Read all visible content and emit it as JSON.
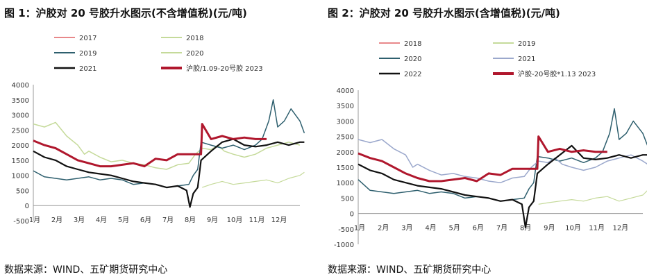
{
  "chart_data": [
    {
      "type": "line",
      "title": "图 1：沪胶对 20 号胶升水图示(不含增值税)(元/吨)",
      "source": "数据来源：WIND、五矿期货研究中心",
      "x_ticks": [
        "1月",
        "2月",
        "3月",
        "4月",
        "5月",
        "6月",
        "7月",
        "8月",
        "9月",
        "10月",
        "11月",
        "12月"
      ],
      "x_range": [
        0,
        12
      ],
      "ylim": [
        -500,
        4000
      ],
      "y_ticks": [
        -500,
        0,
        500,
        1000,
        1500,
        2000,
        2500,
        3000,
        3500,
        4000
      ],
      "legend_position": "top",
      "series": [
        {
          "name": "2017",
          "color": "#e8888a",
          "width": 1.2,
          "points": []
        },
        {
          "name": "2018",
          "color": "#c5da9a",
          "width": 1.5,
          "points": [
            [
              0,
              2700
            ],
            [
              0.5,
              2600
            ],
            [
              1,
              2750
            ],
            [
              1.5,
              2300
            ],
            [
              2,
              2000
            ],
            [
              2.3,
              1700
            ],
            [
              2.5,
              1800
            ],
            [
              3,
              1600
            ],
            [
              3.5,
              1450
            ],
            [
              4,
              1500
            ],
            [
              4.5,
              1400
            ],
            [
              5,
              1350
            ],
            [
              5.5,
              1250
            ],
            [
              6,
              1200
            ],
            [
              6.5,
              1350
            ],
            [
              7,
              1400
            ],
            [
              7.3,
              1700
            ],
            [
              7.6,
              1900
            ],
            [
              8,
              1850
            ],
            [
              8.3,
              2000
            ],
            [
              8.6,
              1800
            ],
            [
              9,
              1700
            ],
            [
              9.5,
              1600
            ],
            [
              10,
              1700
            ],
            [
              10.5,
              1900
            ],
            [
              11,
              2000
            ],
            [
              11.5,
              2100
            ],
            [
              12,
              2000
            ]
          ]
        },
        {
          "name": "2019",
          "color": "#2e5f6e",
          "width": 1.5,
          "points": [
            [
              0,
              1150
            ],
            [
              0.5,
              950
            ],
            [
              1,
              900
            ],
            [
              1.5,
              850
            ],
            [
              2,
              900
            ],
            [
              2.5,
              950
            ],
            [
              3,
              850
            ],
            [
              3.5,
              900
            ],
            [
              4,
              850
            ],
            [
              4.5,
              700
            ],
            [
              5,
              750
            ],
            [
              5.5,
              700
            ],
            [
              6,
              600
            ],
            [
              6.5,
              650
            ],
            [
              7,
              700
            ],
            [
              7.2,
              1000
            ],
            [
              7.4,
              1200
            ],
            [
              7.55,
              2100
            ],
            [
              8,
              2000
            ],
            [
              8.5,
              1900
            ],
            [
              9,
              2000
            ],
            [
              9.5,
              1850
            ],
            [
              10,
              2000
            ],
            [
              10.3,
              2200
            ],
            [
              10.6,
              2800
            ],
            [
              10.8,
              3500
            ],
            [
              11,
              2600
            ],
            [
              11.3,
              2800
            ],
            [
              11.6,
              3200
            ],
            [
              12,
              2800
            ],
            [
              12.2,
              2400
            ]
          ]
        },
        {
          "name": "2020",
          "color": "#c5da9a",
          "width": 1.2,
          "points": [
            [
              7.6,
              600
            ],
            [
              8,
              700
            ],
            [
              8.5,
              800
            ],
            [
              9,
              700
            ],
            [
              9.5,
              750
            ],
            [
              10,
              800
            ],
            [
              10.5,
              850
            ],
            [
              11,
              750
            ],
            [
              11.5,
              900
            ],
            [
              12,
              1000
            ],
            [
              12.2,
              1100
            ]
          ]
        },
        {
          "name": "2021",
          "color": "#111111",
          "width": 2.2,
          "points": [
            [
              0,
              1800
            ],
            [
              0.5,
              1600
            ],
            [
              1,
              1500
            ],
            [
              1.5,
              1300
            ],
            [
              2,
              1200
            ],
            [
              2.5,
              1100
            ],
            [
              3,
              1050
            ],
            [
              3.5,
              1000
            ],
            [
              4,
              900
            ],
            [
              4.5,
              800
            ],
            [
              5,
              750
            ],
            [
              5.5,
              700
            ],
            [
              6,
              600
            ],
            [
              6.5,
              650
            ],
            [
              6.9,
              500
            ],
            [
              7.05,
              -50
            ],
            [
              7.2,
              400
            ],
            [
              7.4,
              600
            ],
            [
              7.55,
              1500
            ],
            [
              8,
              1800
            ],
            [
              8.5,
              2100
            ],
            [
              9,
              2200
            ],
            [
              9.5,
              2000
            ],
            [
              10,
              1950
            ],
            [
              10.5,
              2000
            ],
            [
              11,
              2100
            ],
            [
              11.5,
              2000
            ],
            [
              12,
              2100
            ],
            [
              12.2,
              2100
            ]
          ]
        },
        {
          "name": "沪胶/1.09-20号胶 2023",
          "color": "#b0172d",
          "width": 3,
          "points": [
            [
              0,
              2150
            ],
            [
              0.5,
              2000
            ],
            [
              1,
              1900
            ],
            [
              1.5,
              1700
            ],
            [
              2,
              1500
            ],
            [
              2.5,
              1400
            ],
            [
              3,
              1300
            ],
            [
              3.5,
              1300
            ],
            [
              4,
              1350
            ],
            [
              4.5,
              1400
            ],
            [
              5,
              1300
            ],
            [
              5.5,
              1550
            ],
            [
              6,
              1500
            ],
            [
              6.5,
              1700
            ],
            [
              7,
              1700
            ],
            [
              7.55,
              1700
            ],
            [
              7.6,
              2700
            ],
            [
              8,
              2200
            ],
            [
              8.5,
              2300
            ],
            [
              9,
              2200
            ],
            [
              9.5,
              2250
            ],
            [
              10,
              2200
            ],
            [
              10.5,
              2200
            ]
          ]
        }
      ]
    },
    {
      "type": "line",
      "title": "图 2：沪胶对 20 号胶升水图示(含增值税)(元/吨)",
      "source": "数据来源：WIND、五矿期货研究中心",
      "x_ticks": [
        "1月",
        "2月",
        "3月",
        "4月",
        "5月",
        "6月",
        "7月",
        "8月",
        "9月",
        "10月",
        "11月",
        "12月"
      ],
      "x_range": [
        0,
        12
      ],
      "ylim": [
        -1000,
        4000
      ],
      "y_ticks": [
        -1000,
        -500,
        0,
        500,
        1000,
        1500,
        2000,
        2500,
        3000,
        3500,
        4000
      ],
      "legend_position": "top",
      "series": [
        {
          "name": "2018",
          "color": "#e8888a",
          "width": 1.2,
          "points": []
        },
        {
          "name": "2019",
          "color": "#c5da9a",
          "width": 1.2,
          "points": [
            [
              7.6,
              300
            ],
            [
              8,
              350
            ],
            [
              8.5,
              400
            ],
            [
              9,
              450
            ],
            [
              9.5,
              400
            ],
            [
              10,
              500
            ],
            [
              10.5,
              550
            ],
            [
              11,
              400
            ],
            [
              11.5,
              500
            ],
            [
              12,
              600
            ],
            [
              12.2,
              750
            ]
          ]
        },
        {
          "name": "2020",
          "color": "#2e5f6e",
          "width": 1.5,
          "points": [
            [
              0,
              1100
            ],
            [
              0.5,
              750
            ],
            [
              1,
              700
            ],
            [
              1.5,
              650
            ],
            [
              2,
              700
            ],
            [
              2.5,
              750
            ],
            [
              3,
              650
            ],
            [
              3.5,
              700
            ],
            [
              4,
              650
            ],
            [
              4.5,
              500
            ],
            [
              5,
              550
            ],
            [
              5.5,
              500
            ],
            [
              6,
              400
            ],
            [
              6.5,
              450
            ],
            [
              7,
              500
            ],
            [
              7.2,
              800
            ],
            [
              7.4,
              1000
            ],
            [
              7.55,
              1850
            ],
            [
              8,
              1800
            ],
            [
              8.5,
              1700
            ],
            [
              9,
              1800
            ],
            [
              9.5,
              1650
            ],
            [
              10,
              1800
            ],
            [
              10.3,
              2000
            ],
            [
              10.6,
              2600
            ],
            [
              10.8,
              3400
            ],
            [
              11,
              2400
            ],
            [
              11.3,
              2600
            ],
            [
              11.6,
              3000
            ],
            [
              12,
              2600
            ],
            [
              12.2,
              2200
            ]
          ]
        },
        {
          "name": "2021",
          "color": "#9ba8cc",
          "width": 1.5,
          "points": [
            [
              0,
              2400
            ],
            [
              0.5,
              2300
            ],
            [
              1,
              2400
            ],
            [
              1.5,
              2100
            ],
            [
              2,
              1900
            ],
            [
              2.3,
              1500
            ],
            [
              2.5,
              1600
            ],
            [
              3,
              1400
            ],
            [
              3.5,
              1250
            ],
            [
              4,
              1300
            ],
            [
              4.5,
              1200
            ],
            [
              5,
              1150
            ],
            [
              5.5,
              1050
            ],
            [
              6,
              1000
            ],
            [
              6.5,
              1150
            ],
            [
              7,
              1200
            ],
            [
              7.3,
              1500
            ],
            [
              7.6,
              1700
            ],
            [
              8,
              1650
            ],
            [
              8.3,
              1800
            ],
            [
              8.6,
              1600
            ],
            [
              9,
              1500
            ],
            [
              9.5,
              1400
            ],
            [
              10,
              1500
            ],
            [
              10.5,
              1700
            ],
            [
              11,
              1800
            ],
            [
              11.5,
              1900
            ],
            [
              12,
              1700
            ],
            [
              12.2,
              1600
            ]
          ]
        },
        {
          "name": "2022",
          "color": "#111111",
          "width": 2.2,
          "points": [
            [
              0,
              1600
            ],
            [
              0.5,
              1400
            ],
            [
              1,
              1300
            ],
            [
              1.5,
              1100
            ],
            [
              2,
              1000
            ],
            [
              2.5,
              900
            ],
            [
              3,
              850
            ],
            [
              3.5,
              800
            ],
            [
              4,
              700
            ],
            [
              4.5,
              600
            ],
            [
              5,
              550
            ],
            [
              5.5,
              500
            ],
            [
              6,
              400
            ],
            [
              6.5,
              450
            ],
            [
              6.9,
              300
            ],
            [
              7.05,
              -450
            ],
            [
              7.2,
              200
            ],
            [
              7.4,
              400
            ],
            [
              7.55,
              1300
            ],
            [
              8,
              1600
            ],
            [
              8.5,
              1900
            ],
            [
              9,
              2200
            ],
            [
              9.5,
              1800
            ],
            [
              10,
              1750
            ],
            [
              10.5,
              1800
            ],
            [
              11,
              1900
            ],
            [
              11.5,
              1800
            ],
            [
              12,
              1900
            ],
            [
              12.2,
              1900
            ]
          ]
        },
        {
          "name": "沪胶-20号胶*1.13 2023",
          "color": "#b0172d",
          "width": 3,
          "points": [
            [
              0,
              1950
            ],
            [
              0.5,
              1800
            ],
            [
              1,
              1700
            ],
            [
              1.5,
              1500
            ],
            [
              2,
              1300
            ],
            [
              2.5,
              1150
            ],
            [
              3,
              1050
            ],
            [
              3.5,
              1050
            ],
            [
              4,
              1100
            ],
            [
              4.5,
              1150
            ],
            [
              5,
              1050
            ],
            [
              5.5,
              1300
            ],
            [
              6,
              1250
            ],
            [
              6.5,
              1450
            ],
            [
              7,
              1450
            ],
            [
              7.55,
              1450
            ],
            [
              7.6,
              2500
            ],
            [
              8,
              2000
            ],
            [
              8.5,
              2100
            ],
            [
              9,
              2000
            ],
            [
              9.5,
              2050
            ],
            [
              10,
              2000
            ],
            [
              10.5,
              2000
            ]
          ]
        }
      ]
    }
  ]
}
